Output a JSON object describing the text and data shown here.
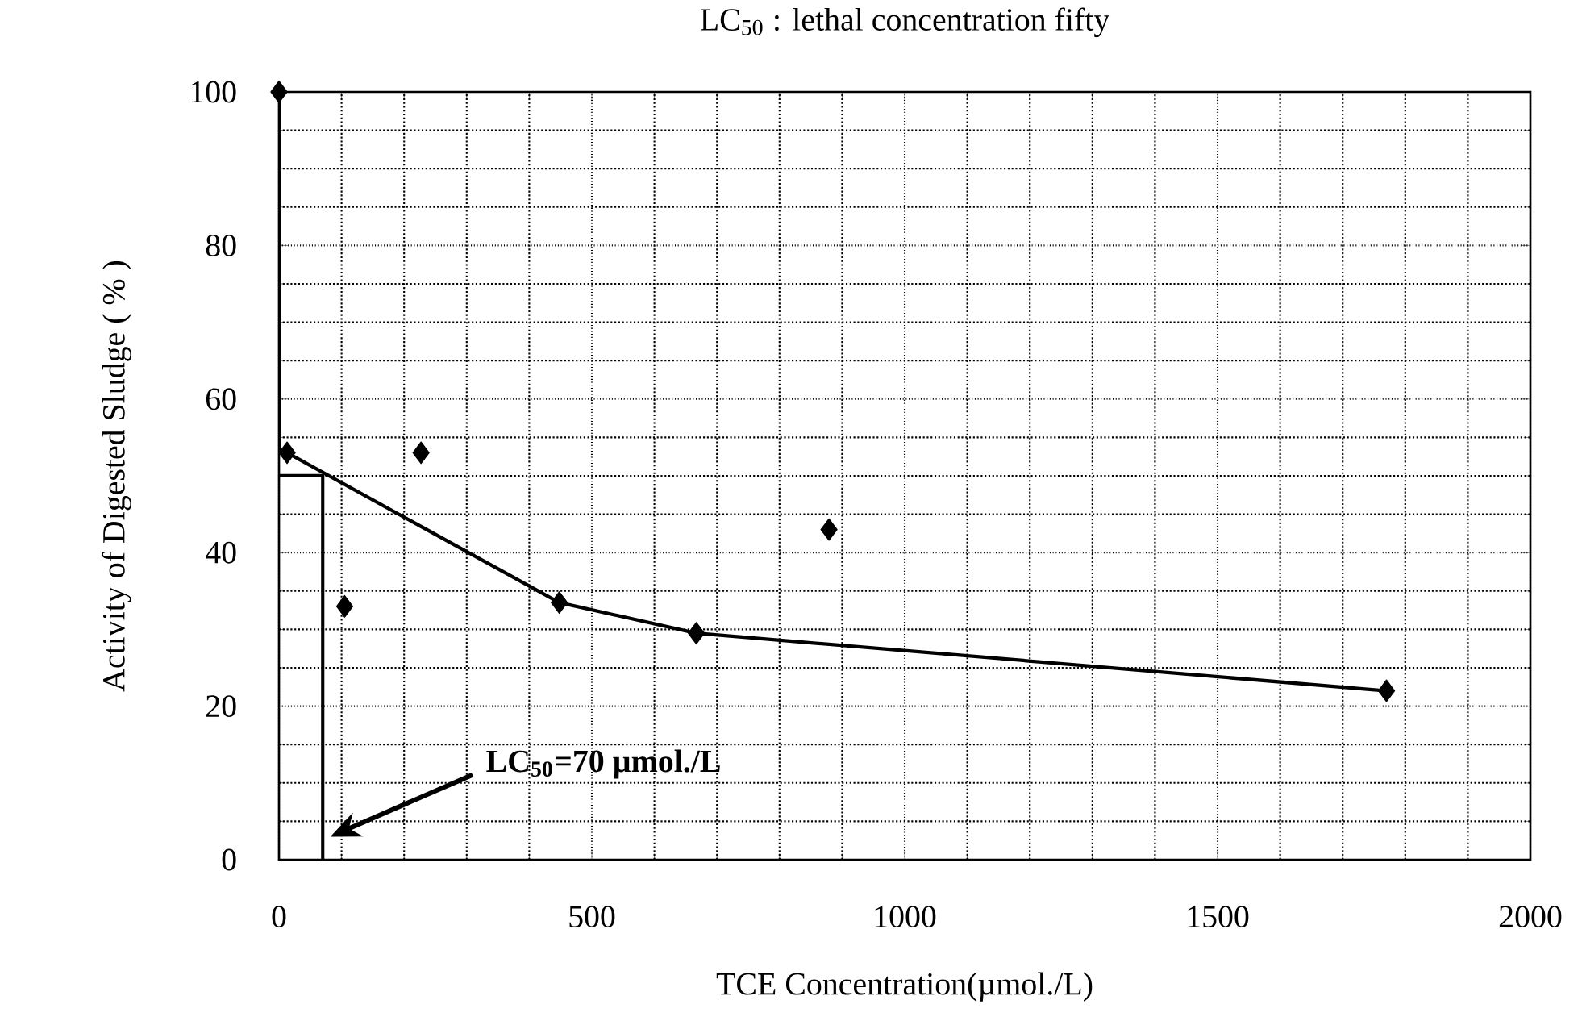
{
  "chart_data": {
    "type": "scatter",
    "title": "LC$_{50}$ : lethal concentration fifty",
    "xlabel": "TCE Concentration(µmol./L)",
    "ylabel": "Activity of Digested Sludge ( % )",
    "xlim": [
      0,
      2000
    ],
    "ylim": [
      0,
      100
    ],
    "xticks": [
      0,
      500,
      1000,
      1500,
      2000
    ],
    "yticks": [
      0,
      20,
      40,
      60,
      80,
      100
    ],
    "grid": true,
    "series": [
      {
        "color": "#000000",
        "marker": "diamond",
        "x": [
          0,
          13,
          105,
          227,
          448,
          667,
          879,
          1770
        ],
        "values": [
          100,
          53,
          33,
          53,
          33.5,
          29.5,
          43,
          22
        ]
      },
      {
        "type": "line",
        "color": "#000000",
        "marker": "none",
        "x": [
          0,
          0,
          13,
          448,
          667,
          1770
        ],
        "values": [
          100,
          53,
          53,
          33.5,
          29.5,
          22
        ]
      },
      {
        "type": "line",
        "color": "#000000",
        "marker": "none",
        "x": [
          0,
          70,
          70
        ],
        "values": [
          50,
          50,
          0
        ]
      }
    ],
    "annotations": [
      "LC$_{50}$=70 µmol./L"
    ]
  }
}
